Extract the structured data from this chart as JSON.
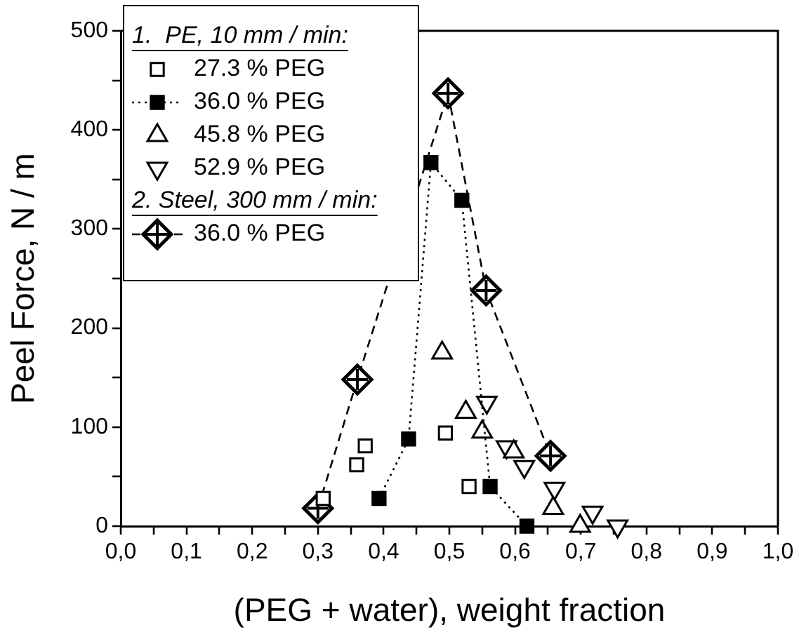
{
  "chart_data": {
    "type": "scatter",
    "xlabel": "(PEG + water), weight fraction",
    "ylabel": "Peel Force, N / m",
    "annotations": [
      "1.  PE, 10 mm / min:",
      "2. Steel, 300 mm / min:"
    ],
    "series": [
      {
        "name": "27.3 % PEG",
        "color": "#000000",
        "marker": "square-open",
        "x": [
          0.308,
          0.359,
          0.372,
          0.494,
          0.53
        ],
        "values": [
          28,
          62,
          81,
          94,
          40
        ]
      },
      {
        "name": "36.0 % PEG",
        "color": "#000000",
        "type": "line",
        "marker": "square",
        "line_style": "dotted",
        "x": [
          0.393,
          0.438,
          0.472,
          0.519,
          0.562,
          0.618
        ],
        "values": [
          28,
          88,
          367,
          329,
          40,
          0
        ]
      },
      {
        "name": "45.8 % PEG",
        "color": "#000000",
        "marker": "triangle-open",
        "x": [
          0.489,
          0.525,
          0.55,
          0.598,
          0.658,
          0.699
        ],
        "values": [
          175,
          115,
          95,
          75,
          18,
          0
        ]
      },
      {
        "name": "52.9 % PEG",
        "color": "#000000",
        "marker": "triangle-down-open",
        "x": [
          0.557,
          0.587,
          0.614,
          0.66,
          0.718,
          0.756
        ],
        "values": [
          125,
          80,
          60,
          38,
          14,
          0
        ]
      },
      {
        "name": "36.0 % PEG",
        "color": "#000000",
        "type": "line",
        "marker": "diamond-cross",
        "line_style": "dashed",
        "x": [
          0.3,
          0.36,
          0.498,
          0.556,
          0.654
        ],
        "values": [
          18,
          148,
          437,
          238,
          71
        ]
      }
    ],
    "xlim": [
      0,
      1
    ],
    "xticks": [
      {
        "value": 0,
        "label": "0,0"
      },
      {
        "value": 0.05,
        "label": null
      },
      {
        "value": 0.1,
        "label": "0,1"
      },
      {
        "value": 0.15,
        "label": null
      },
      {
        "value": 0.2,
        "label": "0,2"
      },
      {
        "value": 0.25,
        "label": null
      },
      {
        "value": 0.3,
        "label": "0,3"
      },
      {
        "value": 0.35,
        "label": null
      },
      {
        "value": 0.4,
        "label": "0,4"
      },
      {
        "value": 0.45,
        "label": null
      },
      {
        "value": 0.5,
        "label": "0,5"
      },
      {
        "value": 0.55,
        "label": null
      },
      {
        "value": 0.6,
        "label": "0,6"
      },
      {
        "value": 0.65,
        "label": null
      },
      {
        "value": 0.7,
        "label": "0,7"
      },
      {
        "value": 0.75,
        "label": null
      },
      {
        "value": 0.8,
        "label": "0,8"
      },
      {
        "value": 0.85,
        "label": null
      },
      {
        "value": 0.9,
        "label": "0,9"
      },
      {
        "value": 0.95,
        "label": null
      },
      {
        "value": 1,
        "label": "1,0"
      }
    ],
    "ylim": [
      0,
      500
    ],
    "yticks": [
      0,
      {
        "value": 50,
        "label": null
      },
      100,
      {
        "value": 150,
        "label": null
      },
      200,
      {
        "value": 250,
        "label": null
      },
      300,
      {
        "value": 350,
        "label": null
      },
      400,
      {
        "value": 450,
        "label": null
      },
      500
    ],
    "grid": false,
    "legend": "top left"
  }
}
